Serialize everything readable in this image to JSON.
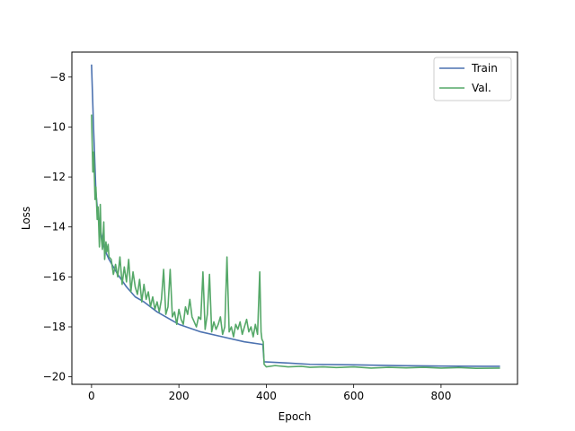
{
  "chart_data": {
    "type": "line",
    "title": "",
    "xlabel": "Epoch",
    "ylabel": "Loss",
    "xlim": [
      -45,
      975
    ],
    "ylim": [
      -20.3,
      -7.0
    ],
    "x_ticks": [
      0,
      200,
      400,
      600,
      800
    ],
    "x_tick_labels": [
      "0",
      "200",
      "400",
      "600",
      "800"
    ],
    "y_ticks": [
      -8,
      -10,
      -12,
      -14,
      -16,
      -18,
      -20
    ],
    "y_tick_labels": [
      "−8",
      "−10",
      "−12",
      "−14",
      "−16",
      "−18",
      "−20"
    ],
    "grid": false,
    "legend": "top-right",
    "series": [
      {
        "name": "Train",
        "color": "#4c72b0",
        "x": [
          0,
          5,
          10,
          15,
          20,
          30,
          40,
          50,
          60,
          80,
          100,
          120,
          150,
          180,
          200,
          250,
          300,
          350,
          390,
          392,
          395,
          450,
          500,
          600,
          700,
          800,
          900,
          935
        ],
        "y": [
          -7.5,
          -10.2,
          -12.6,
          -13.6,
          -14.1,
          -14.9,
          -15.3,
          -15.6,
          -15.9,
          -16.4,
          -16.8,
          -17.0,
          -17.4,
          -17.7,
          -17.9,
          -18.2,
          -18.4,
          -18.6,
          -18.7,
          -18.7,
          -19.4,
          -19.45,
          -19.5,
          -19.52,
          -19.55,
          -19.57,
          -19.58,
          -19.58
        ]
      },
      {
        "name": "Val.",
        "color": "#55a868",
        "x": [
          0,
          3,
          5,
          8,
          10,
          13,
          15,
          18,
          20,
          22,
          25,
          28,
          30,
          33,
          35,
          38,
          40,
          45,
          50,
          55,
          60,
          65,
          70,
          75,
          80,
          85,
          90,
          95,
          100,
          105,
          110,
          115,
          120,
          125,
          130,
          135,
          140,
          145,
          150,
          155,
          160,
          165,
          170,
          175,
          180,
          185,
          190,
          195,
          200,
          205,
          210,
          215,
          220,
          225,
          230,
          235,
          240,
          245,
          250,
          255,
          260,
          265,
          270,
          275,
          280,
          285,
          290,
          295,
          300,
          305,
          310,
          315,
          320,
          325,
          330,
          335,
          340,
          345,
          350,
          355,
          360,
          365,
          370,
          375,
          380,
          385,
          388,
          390,
          393,
          395,
          400,
          420,
          450,
          480,
          500,
          530,
          560,
          600,
          640,
          680,
          720,
          760,
          800,
          840,
          880,
          935
        ],
        "y": [
          -9.5,
          -11.8,
          -11.0,
          -12.9,
          -12.4,
          -13.7,
          -13.2,
          -14.8,
          -13.1,
          -14.4,
          -14.9,
          -13.8,
          -15.3,
          -14.6,
          -15.0,
          -14.7,
          -15.2,
          -15.3,
          -15.9,
          -15.5,
          -16.0,
          -15.2,
          -16.3,
          -15.6,
          -16.2,
          -15.3,
          -16.6,
          -15.8,
          -16.4,
          -16.7,
          -16.1,
          -17.0,
          -16.3,
          -16.9,
          -16.6,
          -17.2,
          -16.8,
          -17.3,
          -17.0,
          -17.4,
          -16.9,
          -15.7,
          -17.5,
          -17.2,
          -15.7,
          -17.6,
          -17.4,
          -17.9,
          -17.3,
          -17.7,
          -17.9,
          -17.2,
          -17.5,
          -16.9,
          -17.6,
          -17.8,
          -18.0,
          -17.6,
          -17.7,
          -15.8,
          -18.1,
          -17.5,
          -15.9,
          -18.2,
          -17.8,
          -18.1,
          -17.9,
          -17.6,
          -18.3,
          -18.0,
          -15.2,
          -18.2,
          -18.0,
          -18.4,
          -17.9,
          -18.1,
          -17.8,
          -18.3,
          -18.0,
          -17.7,
          -18.2,
          -18.0,
          -18.4,
          -17.9,
          -18.3,
          -15.8,
          -18.2,
          -18.5,
          -18.6,
          -19.5,
          -19.6,
          -19.55,
          -19.6,
          -19.58,
          -19.62,
          -19.6,
          -19.63,
          -19.6,
          -19.65,
          -19.62,
          -19.64,
          -19.62,
          -19.65,
          -19.63,
          -19.66,
          -19.65
        ]
      }
    ]
  }
}
